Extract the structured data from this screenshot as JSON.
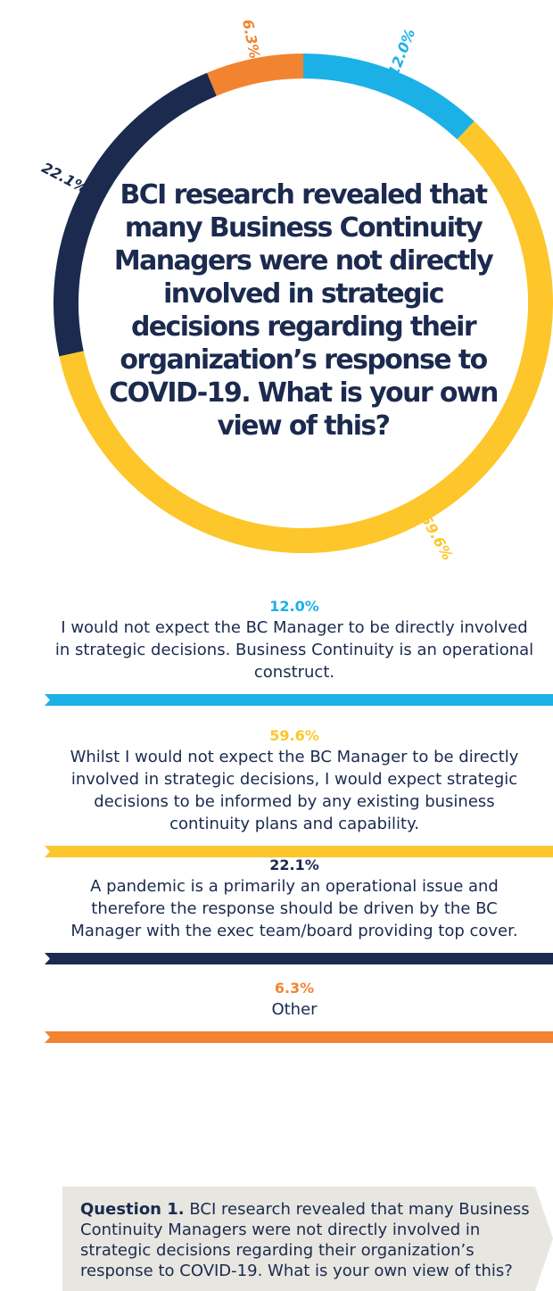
{
  "chart_data": {
    "type": "donut",
    "title": "BCI research revealed that many Business Continuity Managers were not directly involved in strategic decisions regarding their organization’s response to COVID-19. What is your own view of this?",
    "categories": [
      "I would not expect the BC Manager to be directly involved in strategic decisions. Business Continuity is an operational construct.",
      "Whilst I would not expect the BC Manager to be directly involved in strategic decisions, I would expect strategic decisions to be informed by any existing business continuity plans and capability.",
      "A pandemic is a primarily an operational issue and therefore the response should be driven by the BC Manager with the exec team/board providing top cover.",
      "Other"
    ],
    "values": [
      12.0,
      59.6,
      22.1,
      6.3
    ],
    "value_labels": [
      "12.0%",
      "59.6%",
      "22.1%",
      "6.3%"
    ],
    "colors": [
      "#1bb1e7",
      "#fdc62a",
      "#1b2a4e",
      "#f28431"
    ],
    "question_label": "Question 1."
  }
}
